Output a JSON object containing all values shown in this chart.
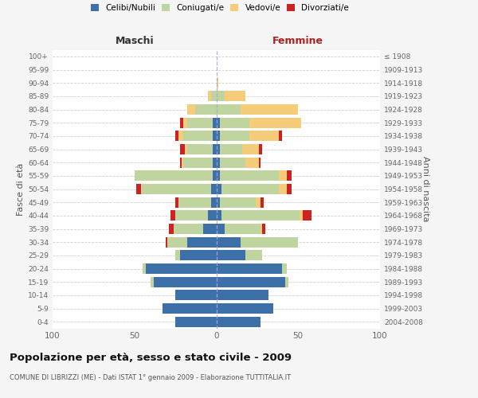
{
  "age_groups": [
    "0-4",
    "5-9",
    "10-14",
    "15-19",
    "20-24",
    "25-29",
    "30-34",
    "35-39",
    "40-44",
    "45-49",
    "50-54",
    "55-59",
    "60-64",
    "65-69",
    "70-74",
    "75-79",
    "80-84",
    "85-89",
    "90-94",
    "95-99",
    "100+"
  ],
  "birth_years": [
    "2004-2008",
    "1999-2003",
    "1994-1998",
    "1989-1993",
    "1984-1988",
    "1979-1983",
    "1974-1978",
    "1969-1973",
    "1964-1968",
    "1959-1963",
    "1954-1958",
    "1949-1953",
    "1944-1948",
    "1939-1943",
    "1934-1938",
    "1929-1933",
    "1924-1928",
    "1919-1923",
    "1914-1918",
    "1909-1913",
    "≤ 1908"
  ],
  "maschi": {
    "celibi": [
      25,
      33,
      25,
      38,
      43,
      22,
      18,
      8,
      5,
      3,
      3,
      2,
      2,
      2,
      2,
      2,
      0,
      0,
      0,
      0,
      0
    ],
    "coniugati": [
      0,
      0,
      0,
      2,
      2,
      3,
      12,
      18,
      20,
      20,
      43,
      48,
      18,
      16,
      18,
      16,
      13,
      3,
      0,
      0,
      0
    ],
    "vedovi": [
      0,
      0,
      0,
      0,
      0,
      0,
      0,
      0,
      0,
      0,
      0,
      0,
      1,
      1,
      3,
      2,
      5,
      2,
      0,
      0,
      0
    ],
    "divorziati": [
      0,
      0,
      0,
      0,
      0,
      0,
      1,
      3,
      3,
      2,
      3,
      0,
      1,
      3,
      2,
      2,
      0,
      0,
      0,
      0,
      0
    ]
  },
  "femmine": {
    "nubili": [
      27,
      35,
      32,
      42,
      40,
      18,
      15,
      5,
      3,
      2,
      3,
      2,
      2,
      2,
      2,
      2,
      0,
      0,
      0,
      0,
      0
    ],
    "coniugate": [
      0,
      0,
      0,
      2,
      3,
      10,
      35,
      22,
      48,
      22,
      35,
      36,
      16,
      14,
      18,
      18,
      15,
      5,
      0,
      0,
      0
    ],
    "vedove": [
      0,
      0,
      0,
      0,
      0,
      0,
      0,
      1,
      2,
      3,
      5,
      5,
      8,
      10,
      18,
      32,
      35,
      13,
      1,
      0,
      0
    ],
    "divorziate": [
      0,
      0,
      0,
      0,
      0,
      0,
      0,
      2,
      5,
      2,
      3,
      3,
      1,
      2,
      2,
      0,
      0,
      0,
      0,
      0,
      0
    ]
  },
  "colors": {
    "celibi": "#3d6fa8",
    "coniugati": "#c0d4a0",
    "vedovi": "#f5cc7a",
    "divorziati": "#cc2222"
  },
  "xlim": 100,
  "title": "Popolazione per età, sesso e stato civile - 2009",
  "subtitle": "COMUNE DI LIBRIZZI (ME) - Dati ISTAT 1° gennaio 2009 - Elaborazione TUTTITALIA.IT",
  "label_maschi": "Maschi",
  "label_femmine": "Femmine",
  "ylabel_left": "Fasce di età",
  "ylabel_right": "Anni di nascita",
  "background_color": "#f5f5f5",
  "bar_background": "#ffffff",
  "grid_color": "#cccccc",
  "legend_labels": [
    "Celibi/Nubili",
    "Coniugati/e",
    "Vedovi/e",
    "Divorziati/e"
  ]
}
